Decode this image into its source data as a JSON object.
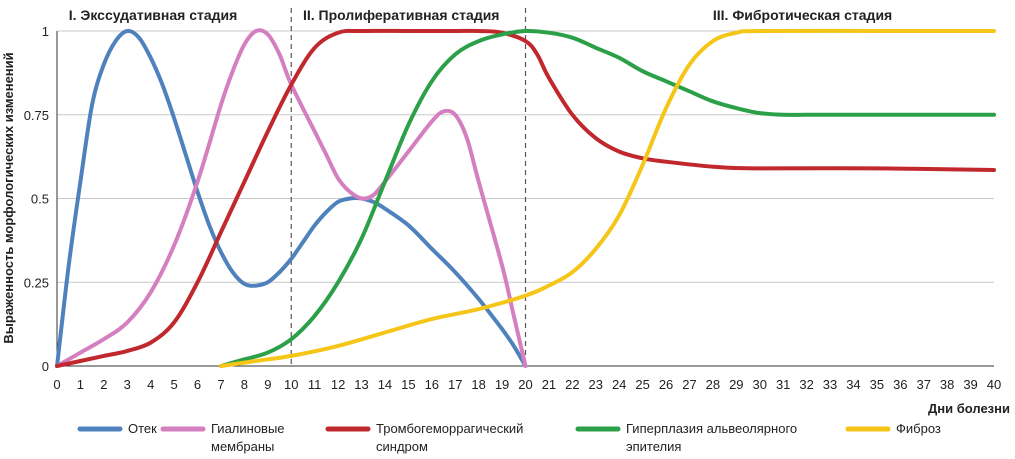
{
  "chart_data": {
    "type": "line",
    "xlabel": "Дни болезни",
    "ylabel": "Выраженность морфологических изменений",
    "xlim": [
      0,
      40
    ],
    "ylim": [
      0,
      1
    ],
    "x_ticks": [
      0,
      1,
      2,
      3,
      4,
      5,
      6,
      7,
      8,
      9,
      10,
      11,
      12,
      13,
      14,
      15,
      16,
      17,
      18,
      19,
      20,
      21,
      22,
      23,
      24,
      25,
      26,
      27,
      28,
      29,
      30,
      31,
      32,
      33,
      34,
      35,
      36,
      37,
      38,
      39,
      40
    ],
    "y_ticks": [
      0,
      0.25,
      0.5,
      0.75,
      1
    ],
    "y_tick_labels": [
      "0",
      "0.25",
      "0.5",
      "0.75",
      "1"
    ],
    "grid": "horizontal",
    "legend_position": "bottom",
    "stages": [
      {
        "label": "I. Экссудативная стадия",
        "x": 0.5
      },
      {
        "label": "II. Пролиферативная стадия",
        "x": 10.5
      },
      {
        "label": "III. Фибротическая стадия",
        "x": 28
      }
    ],
    "stage_dividers": [
      10,
      20
    ],
    "series": [
      {
        "name": "Отек",
        "color": "#4f81bd",
        "points": [
          [
            0,
            0
          ],
          [
            0.5,
            0.3
          ],
          [
            1,
            0.55
          ],
          [
            1.5,
            0.78
          ],
          [
            2,
            0.9
          ],
          [
            2.5,
            0.97
          ],
          [
            3,
            1
          ],
          [
            3.5,
            0.98
          ],
          [
            4,
            0.92
          ],
          [
            4.5,
            0.84
          ],
          [
            5,
            0.74
          ],
          [
            5.5,
            0.63
          ],
          [
            6,
            0.52
          ],
          [
            6.5,
            0.42
          ],
          [
            7,
            0.34
          ],
          [
            7.5,
            0.28
          ],
          [
            8,
            0.245
          ],
          [
            8.5,
            0.24
          ],
          [
            9,
            0.25
          ],
          [
            9.5,
            0.28
          ],
          [
            10,
            0.32
          ],
          [
            10.5,
            0.37
          ],
          [
            11,
            0.42
          ],
          [
            11.5,
            0.46
          ],
          [
            12,
            0.49
          ],
          [
            12.5,
            0.5
          ],
          [
            13,
            0.5
          ],
          [
            13.5,
            0.49
          ],
          [
            14,
            0.47
          ],
          [
            15,
            0.42
          ],
          [
            16,
            0.35
          ],
          [
            17,
            0.28
          ],
          [
            18,
            0.2
          ],
          [
            19,
            0.11
          ],
          [
            19.5,
            0.06
          ],
          [
            20,
            0
          ]
        ]
      },
      {
        "name": "Гиалиновые мембраны",
        "color": "#d47fbf",
        "points": [
          [
            0,
            0
          ],
          [
            1,
            0.04
          ],
          [
            2,
            0.08
          ],
          [
            3,
            0.13
          ],
          [
            4,
            0.22
          ],
          [
            5,
            0.36
          ],
          [
            6,
            0.55
          ],
          [
            7,
            0.78
          ],
          [
            7.5,
            0.88
          ],
          [
            8,
            0.96
          ],
          [
            8.5,
            1
          ],
          [
            9,
            0.99
          ],
          [
            9.5,
            0.93
          ],
          [
            10,
            0.84
          ],
          [
            11,
            0.7
          ],
          [
            11.5,
            0.63
          ],
          [
            12,
            0.56
          ],
          [
            12.5,
            0.52
          ],
          [
            13,
            0.5
          ],
          [
            13.5,
            0.51
          ],
          [
            14,
            0.55
          ],
          [
            15,
            0.64
          ],
          [
            16,
            0.73
          ],
          [
            16.5,
            0.76
          ],
          [
            17,
            0.75
          ],
          [
            17.5,
            0.68
          ],
          [
            18,
            0.55
          ],
          [
            19,
            0.3
          ],
          [
            19.5,
            0.15
          ],
          [
            20,
            0
          ]
        ]
      },
      {
        "name": "Тромбогеморрагический синдром",
        "color": "#c0282d",
        "points": [
          [
            0,
            0
          ],
          [
            1,
            0.015
          ],
          [
            2,
            0.03
          ],
          [
            3,
            0.045
          ],
          [
            4,
            0.07
          ],
          [
            5,
            0.13
          ],
          [
            6,
            0.25
          ],
          [
            7,
            0.4
          ],
          [
            8,
            0.55
          ],
          [
            9,
            0.7
          ],
          [
            10,
            0.84
          ],
          [
            11,
            0.95
          ],
          [
            12,
            0.995
          ],
          [
            13,
            1
          ],
          [
            15,
            1
          ],
          [
            17,
            1
          ],
          [
            18,
            1
          ],
          [
            19,
            0.995
          ],
          [
            20,
            0.97
          ],
          [
            20.5,
            0.93
          ],
          [
            21,
            0.86
          ],
          [
            22,
            0.75
          ],
          [
            23,
            0.68
          ],
          [
            24,
            0.64
          ],
          [
            25,
            0.62
          ],
          [
            26,
            0.61
          ],
          [
            28,
            0.595
          ],
          [
            30,
            0.59
          ],
          [
            35,
            0.59
          ],
          [
            40,
            0.585
          ]
        ]
      },
      {
        "name": "Гиперплазия альвеолярного эпителия",
        "color": "#2ca048",
        "points": [
          [
            7,
            0
          ],
          [
            8,
            0.02
          ],
          [
            9,
            0.04
          ],
          [
            10,
            0.08
          ],
          [
            11,
            0.15
          ],
          [
            12,
            0.25
          ],
          [
            13,
            0.38
          ],
          [
            14,
            0.55
          ],
          [
            15,
            0.72
          ],
          [
            16,
            0.85
          ],
          [
            17,
            0.93
          ],
          [
            18,
            0.97
          ],
          [
            19,
            0.99
          ],
          [
            20,
            1
          ],
          [
            21,
            0.995
          ],
          [
            22,
            0.98
          ],
          [
            23,
            0.95
          ],
          [
            24,
            0.92
          ],
          [
            25,
            0.88
          ],
          [
            26,
            0.85
          ],
          [
            27,
            0.82
          ],
          [
            28,
            0.79
          ],
          [
            29,
            0.77
          ],
          [
            30,
            0.755
          ],
          [
            31,
            0.75
          ],
          [
            32,
            0.75
          ],
          [
            34,
            0.75
          ],
          [
            36,
            0.75
          ],
          [
            40,
            0.75
          ]
        ]
      },
      {
        "name": "Фиброз",
        "color": "#f5c518",
        "points": [
          [
            7,
            0
          ],
          [
            8,
            0.01
          ],
          [
            9,
            0.02
          ],
          [
            10,
            0.03
          ],
          [
            12,
            0.06
          ],
          [
            14,
            0.1
          ],
          [
            16,
            0.14
          ],
          [
            18,
            0.17
          ],
          [
            20,
            0.21
          ],
          [
            21,
            0.24
          ],
          [
            22,
            0.28
          ],
          [
            23,
            0.35
          ],
          [
            24,
            0.45
          ],
          [
            25,
            0.6
          ],
          [
            26,
            0.77
          ],
          [
            27,
            0.9
          ],
          [
            28,
            0.97
          ],
          [
            29,
            0.995
          ],
          [
            30,
            1
          ],
          [
            35,
            1
          ],
          [
            40,
            1
          ]
        ]
      }
    ]
  },
  "legend": {
    "items": [
      {
        "line1": "Отек",
        "line2": "",
        "color": "#4f81bd"
      },
      {
        "line1": "Гиалиновые",
        "line2": "мембраны",
        "color": "#d47fbf"
      },
      {
        "line1": "Тромбогеморрагический",
        "line2": "синдром",
        "color": "#c0282d"
      },
      {
        "line1": "Гиперплазия альвеолярного",
        "line2": "эпителия",
        "color": "#2ca048"
      },
      {
        "line1": "Фиброз",
        "line2": "",
        "color": "#f5c518"
      }
    ]
  }
}
